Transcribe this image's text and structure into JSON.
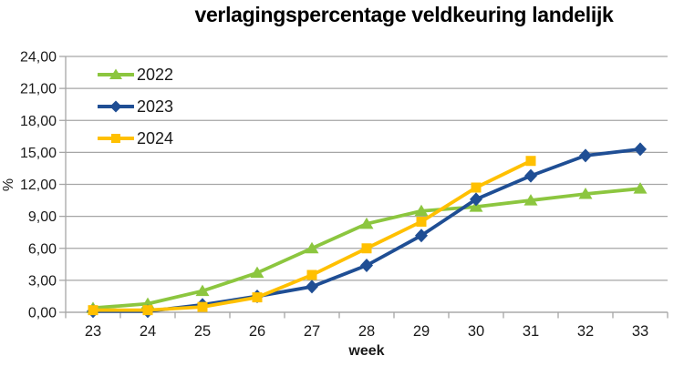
{
  "title": "verlagingspercentage veldkeuring landelijk",
  "colors": {
    "background": "#FFFFFF",
    "gridline": "#A6A6A6",
    "axis": "#A6A6A6",
    "text": "#1A1A1A",
    "title_text": "#000000"
  },
  "chart_data": {
    "type": "line",
    "title": "verlagingspercentage veldkeuring landelijk",
    "xlabel": "week",
    "ylabel": "%",
    "categories": [
      "23",
      "24",
      "25",
      "26",
      "27",
      "28",
      "29",
      "30",
      "31",
      "32",
      "33"
    ],
    "ylim": [
      0,
      24
    ],
    "ytick_step": 3,
    "ytick_labels": [
      "0,00",
      "3,00",
      "6,00",
      "9,00",
      "12,00",
      "15,00",
      "18,00",
      "21,00",
      "24,00"
    ],
    "grid": "horizontal",
    "legend_position": "inside-top-left",
    "series": [
      {
        "name": "2022",
        "color": "#8CC63F",
        "marker": "triangle",
        "values": [
          0.4,
          0.8,
          2.0,
          3.7,
          6.0,
          8.3,
          9.5,
          9.9,
          10.5,
          11.1,
          11.6
        ]
      },
      {
        "name": "2023",
        "color": "#1F4E94",
        "marker": "diamond",
        "values": [
          0.1,
          0.1,
          0.7,
          1.5,
          2.4,
          4.4,
          7.2,
          10.6,
          12.8,
          14.7,
          15.3
        ]
      },
      {
        "name": "2024",
        "color": "#FFC000",
        "marker": "square",
        "values": [
          0.2,
          0.2,
          0.5,
          1.4,
          3.5,
          6.0,
          8.5,
          11.7,
          14.2,
          null,
          null
        ]
      }
    ]
  }
}
